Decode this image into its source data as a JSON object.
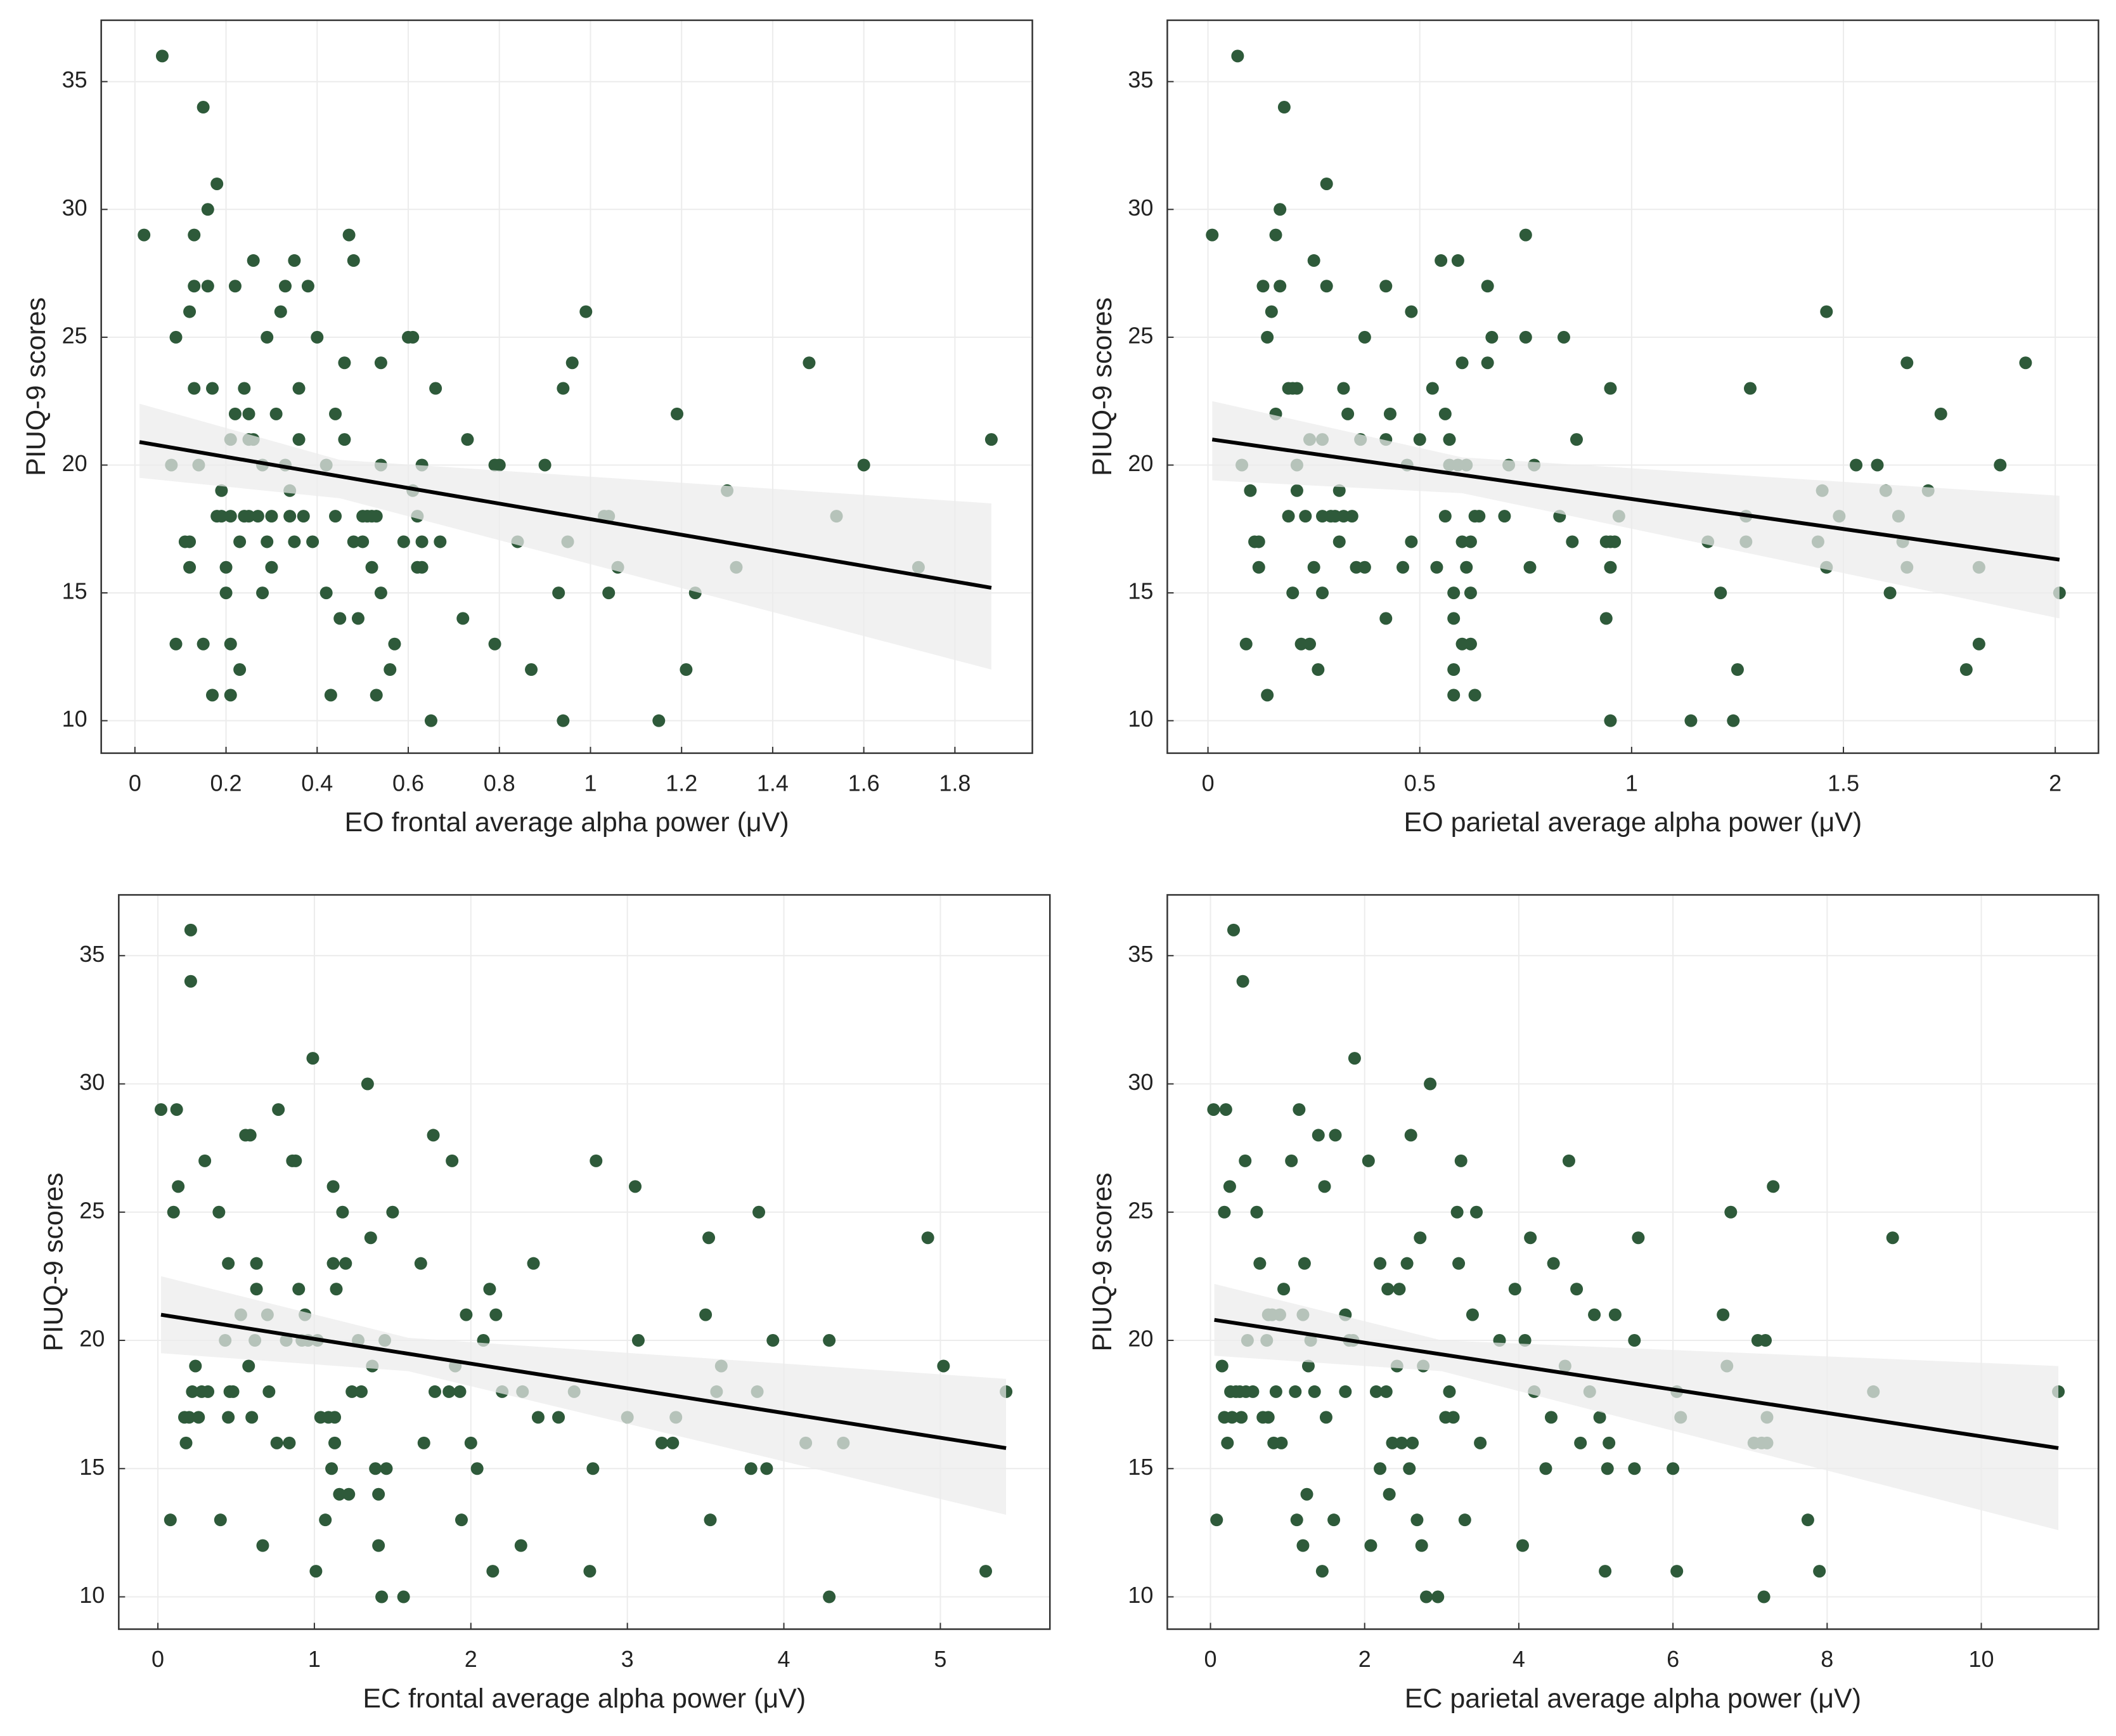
{
  "chart_data": [
    {
      "type": "scatter",
      "x_label": "EO frontal average alpha power (μV)",
      "y_label": "PIUQ-9 scores",
      "color": "#2e5a3a",
      "grid": true,
      "xlim": [
        -0.074,
        1.97
      ],
      "ylim": [
        8.73,
        37.4
      ],
      "xticks": [
        0,
        0.2,
        0.4,
        0.6,
        0.8,
        1,
        1.2,
        1.4,
        1.6,
        1.8
      ],
      "yticks": [
        10,
        15,
        20,
        25,
        30,
        35
      ],
      "x": [
        0.02,
        0.06,
        0.08,
        0.09,
        0.09,
        0.11,
        0.12,
        0.12,
        0.12,
        0.13,
        0.13,
        0.13,
        0.14,
        0.15,
        0.15,
        0.16,
        0.16,
        0.17,
        0.17,
        0.18,
        0.18,
        0.19,
        0.19,
        0.2,
        0.2,
        0.21,
        0.21,
        0.21,
        0.21,
        0.22,
        0.22,
        0.23,
        0.23,
        0.24,
        0.24,
        0.25,
        0.25,
        0.25,
        0.26,
        0.26,
        0.27,
        0.28,
        0.28,
        0.29,
        0.29,
        0.3,
        0.3,
        0.31,
        0.32,
        0.33,
        0.33,
        0.34,
        0.34,
        0.35,
        0.35,
        0.36,
        0.36,
        0.37,
        0.38,
        0.39,
        0.4,
        0.42,
        0.42,
        0.43,
        0.44,
        0.44,
        0.45,
        0.46,
        0.46,
        0.47,
        0.48,
        0.48,
        0.49,
        0.5,
        0.5,
        0.51,
        0.52,
        0.52,
        0.53,
        0.53,
        0.54,
        0.54,
        0.54,
        0.56,
        0.57,
        0.59,
        0.6,
        0.61,
        0.61,
        0.62,
        0.62,
        0.63,
        0.63,
        0.63,
        0.65,
        0.66,
        0.67,
        0.72,
        0.73,
        0.79,
        0.79,
        0.8,
        0.84,
        0.87,
        0.9,
        0.93,
        0.94,
        0.94,
        0.95,
        0.96,
        0.99,
        1.03,
        1.04,
        1.04,
        1.06,
        1.15,
        1.19,
        1.21,
        1.23,
        1.3,
        1.32,
        1.48,
        1.54,
        1.6,
        1.72,
        1.88
      ],
      "values": [
        29,
        36,
        20,
        25,
        13,
        17,
        17,
        16,
        26,
        29,
        27,
        23,
        20,
        34,
        13,
        30,
        27,
        23,
        11,
        31,
        18,
        18,
        19,
        15,
        16,
        18,
        21,
        13,
        11,
        22,
        27,
        12,
        17,
        18,
        23,
        21,
        18,
        22,
        28,
        21,
        18,
        20,
        15,
        17,
        25,
        18,
        16,
        22,
        26,
        27,
        20,
        18,
        19,
        28,
        17,
        21,
        23,
        18,
        27,
        17,
        25,
        20,
        15,
        11,
        22,
        18,
        14,
        24,
        21,
        29,
        28,
        17,
        14,
        17,
        18,
        18,
        16,
        18,
        11,
        18,
        15,
        24,
        20,
        12,
        13,
        17,
        25,
        25,
        19,
        18,
        16,
        17,
        16,
        20,
        10,
        23,
        17,
        14,
        21,
        13,
        20,
        20,
        17,
        12,
        20,
        15,
        10,
        23,
        17,
        24,
        26,
        18,
        18,
        15,
        16,
        10,
        22,
        12,
        15,
        19,
        16,
        24,
        18,
        20,
        16,
        21
      ],
      "fit": {
        "x": [
          0.01,
          1.88
        ],
        "values": [
          20.9,
          15.2
        ]
      },
      "band": {
        "x": [
          0.01,
          0.45,
          1.88
        ],
        "lower": [
          19.5,
          18.7,
          12.0
        ],
        "upper": [
          22.4,
          20.2,
          18.5
        ]
      }
    },
    {
      "type": "scatter",
      "x_label": "EO parietal average alpha power (μV)",
      "y_label": "PIUQ-9 scores",
      "color": "#2e5a3a",
      "grid": true,
      "xlim": [
        -0.096,
        2.102
      ],
      "ylim": [
        8.73,
        37.4
      ],
      "xticks": [
        0,
        0.5,
        1,
        1.5,
        2
      ],
      "yticks": [
        10,
        15,
        20,
        25,
        30,
        35
      ],
      "x": [
        0.01,
        0.07,
        0.08,
        0.09,
        0.1,
        0.11,
        0.12,
        0.12,
        0.13,
        0.14,
        0.14,
        0.15,
        0.16,
        0.16,
        0.17,
        0.17,
        0.18,
        0.19,
        0.19,
        0.2,
        0.2,
        0.21,
        0.21,
        0.21,
        0.22,
        0.23,
        0.24,
        0.24,
        0.25,
        0.25,
        0.26,
        0.27,
        0.27,
        0.27,
        0.28,
        0.28,
        0.29,
        0.3,
        0.31,
        0.31,
        0.32,
        0.32,
        0.33,
        0.34,
        0.35,
        0.36,
        0.37,
        0.37,
        0.42,
        0.42,
        0.42,
        0.43,
        0.46,
        0.47,
        0.48,
        0.48,
        0.5,
        0.53,
        0.54,
        0.55,
        0.56,
        0.56,
        0.57,
        0.57,
        0.58,
        0.58,
        0.58,
        0.58,
        0.59,
        0.59,
        0.6,
        0.6,
        0.6,
        0.61,
        0.61,
        0.62,
        0.62,
        0.62,
        0.63,
        0.63,
        0.64,
        0.66,
        0.66,
        0.67,
        0.7,
        0.71,
        0.75,
        0.75,
        0.76,
        0.77,
        0.83,
        0.84,
        0.86,
        0.87,
        0.94,
        0.94,
        0.95,
        0.95,
        0.95,
        0.95,
        0.96,
        0.97,
        1.14,
        1.18,
        1.21,
        1.24,
        1.25,
        1.27,
        1.27,
        1.28,
        1.44,
        1.45,
        1.46,
        1.46,
        1.49,
        1.53,
        1.58,
        1.6,
        1.61,
        1.63,
        1.64,
        1.65,
        1.65,
        1.7,
        1.73,
        1.79,
        1.82,
        1.82,
        1.87,
        1.93,
        2.01
      ],
      "values": [
        29,
        36,
        20,
        13,
        19,
        17,
        17,
        16,
        27,
        25,
        11,
        26,
        29,
        22,
        27,
        30,
        34,
        18,
        23,
        23,
        15,
        20,
        23,
        19,
        13,
        18,
        13,
        21,
        16,
        28,
        12,
        18,
        21,
        15,
        31,
        27,
        18,
        18,
        19,
        17,
        23,
        18,
        22,
        18,
        16,
        21,
        25,
        16,
        14,
        21,
        27,
        22,
        16,
        20,
        26,
        17,
        21,
        23,
        16,
        28,
        22,
        18,
        20,
        21,
        11,
        14,
        15,
        12,
        28,
        20,
        24,
        17,
        13,
        16,
        20,
        17,
        13,
        15,
        11,
        18,
        18,
        27,
        24,
        25,
        18,
        20,
        29,
        25,
        16,
        20,
        18,
        25,
        17,
        21,
        14,
        17,
        17,
        16,
        23,
        10,
        17,
        18,
        10,
        17,
        15,
        10,
        12,
        17,
        18,
        23,
        17,
        19,
        16,
        26,
        18,
        20,
        20,
        19,
        15,
        18,
        17,
        16,
        24,
        19,
        22,
        12,
        13,
        16,
        20,
        24,
        15
      ],
      "fit": {
        "x": [
          0.01,
          2.01
        ],
        "values": [
          21.0,
          16.3
        ]
      },
      "band": {
        "x": [
          0.01,
          0.6,
          2.01
        ],
        "lower": [
          19.4,
          18.9,
          14.0
        ],
        "upper": [
          22.5,
          20.3,
          18.8
        ]
      }
    },
    {
      "type": "scatter",
      "x_label": "EC frontal average alpha power (μV)",
      "y_label": "PIUQ-9 scores",
      "color": "#2e5a3a",
      "grid": true,
      "xlim": [
        -0.25,
        5.7
      ],
      "ylim": [
        8.74,
        37.37
      ],
      "xticks": [
        0,
        1,
        2,
        3,
        4,
        5
      ],
      "yticks": [
        10,
        15,
        20,
        25,
        30,
        35
      ],
      "x": [
        0.02,
        0.08,
        0.1,
        0.12,
        0.13,
        0.17,
        0.18,
        0.2,
        0.21,
        0.21,
        0.22,
        0.24,
        0.26,
        0.28,
        0.3,
        0.32,
        0.39,
        0.4,
        0.43,
        0.45,
        0.45,
        0.46,
        0.48,
        0.53,
        0.56,
        0.58,
        0.59,
        0.6,
        0.62,
        0.63,
        0.63,
        0.67,
        0.7,
        0.71,
        0.76,
        0.77,
        0.82,
        0.84,
        0.86,
        0.88,
        0.9,
        0.92,
        0.94,
        0.96,
        0.99,
        1.01,
        1.02,
        1.04,
        1.07,
        1.09,
        1.11,
        1.12,
        1.12,
        1.13,
        1.13,
        1.14,
        1.16,
        1.18,
        1.2,
        1.22,
        1.24,
        1.28,
        1.3,
        1.34,
        1.36,
        1.37,
        1.39,
        1.41,
        1.41,
        1.43,
        1.45,
        1.46,
        1.5,
        1.57,
        1.68,
        1.7,
        1.76,
        1.77,
        1.86,
        1.88,
        1.9,
        1.93,
        1.94,
        1.97,
        2.0,
        2.04,
        2.08,
        2.12,
        2.14,
        2.16,
        2.2,
        2.32,
        2.33,
        2.4,
        2.43,
        2.56,
        2.66,
        2.76,
        2.78,
        2.8,
        3.0,
        3.05,
        3.07,
        3.22,
        3.29,
        3.31,
        3.5,
        3.52,
        3.53,
        3.57,
        3.6,
        3.79,
        3.83,
        3.84,
        3.89,
        3.93,
        4.14,
        4.29,
        4.29,
        4.38,
        4.92,
        5.02,
        5.29,
        5.42
      ],
      "values": [
        29,
        13,
        25,
        29,
        26,
        17,
        16,
        17,
        36,
        34,
        18,
        19,
        17,
        18,
        27,
        18,
        25,
        13,
        20,
        23,
        17,
        18,
        18,
        21,
        28,
        19,
        28,
        17,
        20,
        22,
        23,
        12,
        21,
        18,
        16,
        29,
        20,
        16,
        27,
        27,
        22,
        20,
        21,
        20,
        31,
        11,
        20,
        17,
        13,
        17,
        15,
        26,
        23,
        16,
        17,
        22,
        14,
        25,
        23,
        14,
        18,
        20,
        18,
        30,
        24,
        19,
        15,
        12,
        14,
        10,
        20,
        15,
        25,
        10,
        23,
        16,
        28,
        18,
        18,
        27,
        19,
        18,
        13,
        21,
        16,
        15,
        20,
        22,
        11,
        21,
        18,
        12,
        18,
        23,
        17,
        17,
        18,
        11,
        15,
        27,
        17,
        26,
        20,
        16,
        16,
        17,
        21,
        24,
        13,
        18,
        19,
        15,
        18,
        25,
        15,
        20,
        16,
        10,
        20,
        16,
        24,
        19,
        11,
        18
      ],
      "fit": {
        "x": [
          0.02,
          5.42
        ],
        "values": [
          21.0,
          15.8
        ]
      },
      "band": {
        "x": [
          0.02,
          1.6,
          5.42
        ],
        "lower": [
          19.5,
          18.8,
          13.2
        ],
        "upper": [
          22.5,
          20.1,
          18.5
        ]
      }
    },
    {
      "type": "scatter",
      "x_label": "EC parietal average alpha power (μV)",
      "y_label": "PIUQ-9 scores",
      "color": "#2e5a3a",
      "grid": true,
      "xlim": [
        -0.56,
        11.52
      ],
      "ylim": [
        8.74,
        37.37
      ],
      "xticks": [
        0,
        2,
        4,
        6,
        8,
        10
      ],
      "yticks": [
        10,
        15,
        20,
        25,
        30,
        35
      ],
      "x": [
        0.04,
        0.08,
        0.15,
        0.18,
        0.18,
        0.2,
        0.22,
        0.25,
        0.26,
        0.28,
        0.3,
        0.33,
        0.38,
        0.4,
        0.42,
        0.45,
        0.46,
        0.48,
        0.55,
        0.6,
        0.64,
        0.68,
        0.73,
        0.75,
        0.75,
        0.8,
        0.82,
        0.85,
        0.9,
        0.92,
        0.95,
        1.05,
        1.1,
        1.12,
        1.15,
        1.2,
        1.2,
        1.22,
        1.25,
        1.27,
        1.3,
        1.35,
        1.4,
        1.45,
        1.48,
        1.5,
        1.6,
        1.62,
        1.75,
        1.75,
        1.8,
        1.85,
        1.87,
        2.05,
        2.08,
        2.15,
        2.2,
        2.2,
        2.28,
        2.3,
        2.32,
        2.36,
        2.42,
        2.45,
        2.48,
        2.55,
        2.58,
        2.6,
        2.62,
        2.68,
        2.72,
        2.74,
        2.76,
        2.8,
        2.85,
        2.95,
        3.05,
        3.1,
        3.15,
        3.2,
        3.22,
        3.25,
        3.3,
        3.4,
        3.45,
        3.5,
        3.75,
        3.95,
        4.05,
        4.08,
        4.15,
        4.2,
        4.35,
        4.42,
        4.45,
        4.6,
        4.65,
        4.75,
        4.8,
        4.92,
        4.98,
        5.05,
        5.12,
        5.15,
        5.17,
        5.25,
        5.5,
        5.5,
        5.55,
        6.0,
        6.05,
        6.05,
        6.1,
        6.65,
        6.7,
        6.75,
        7.05,
        7.1,
        7.15,
        7.18,
        7.2,
        7.22,
        7.22,
        7.3,
        7.75,
        7.9,
        8.6,
        8.85,
        11.0
      ],
      "values": [
        29,
        13,
        19,
        25,
        17,
        29,
        16,
        26,
        18,
        17,
        36,
        18,
        18,
        17,
        34,
        27,
        18,
        20,
        18,
        25,
        23,
        17,
        20,
        21,
        17,
        21,
        16,
        18,
        21,
        16,
        22,
        27,
        18,
        13,
        29,
        21,
        12,
        23,
        14,
        19,
        20,
        18,
        28,
        11,
        26,
        17,
        13,
        28,
        21,
        18,
        20,
        20,
        31,
        27,
        12,
        18,
        23,
        15,
        18,
        22,
        14,
        16,
        19,
        22,
        16,
        23,
        15,
        28,
        16,
        13,
        24,
        12,
        19,
        10,
        30,
        10,
        17,
        18,
        17,
        25,
        23,
        27,
        13,
        21,
        25,
        16,
        20,
        22,
        12,
        20,
        24,
        18,
        15,
        17,
        23,
        19,
        27,
        22,
        16,
        18,
        21,
        17,
        11,
        15,
        16,
        21,
        20,
        15,
        24,
        15,
        11,
        18,
        17,
        21,
        19,
        25,
        16,
        20,
        16,
        10,
        20,
        17,
        16,
        26,
        13,
        11,
        18,
        24,
        18
      ],
      "fit": {
        "x": [
          0.05,
          11.0
        ],
        "values": [
          20.8,
          15.8
        ]
      },
      "band": {
        "x": [
          0.05,
          3.0,
          11.0
        ],
        "lower": [
          19.4,
          18.8,
          12.6
        ],
        "upper": [
          22.2,
          20.0,
          19.0
        ]
      }
    }
  ]
}
